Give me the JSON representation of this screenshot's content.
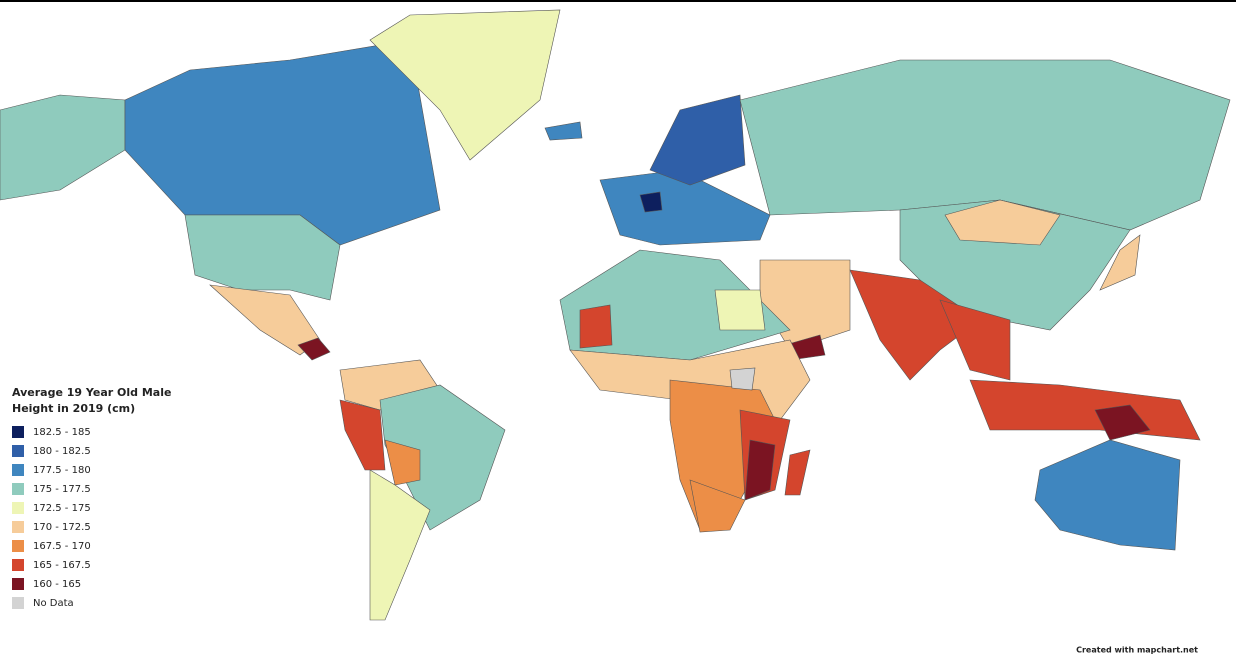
{
  "map": {
    "title": [
      "Average 19 Year Old Male",
      "Height in 2019 (cm)"
    ],
    "legend": [
      {
        "label": "182.5 - 185",
        "color": "#0d1f5e"
      },
      {
        "label": "180 - 182.5",
        "color": "#2f5fa8"
      },
      {
        "label": "177.5 - 180",
        "color": "#3f86bf"
      },
      {
        "label": "175 - 177.5",
        "color": "#8fcbbd"
      },
      {
        "label": "172.5 - 175",
        "color": "#eef5b5"
      },
      {
        "label": "170 - 172.5",
        "color": "#f6cc9a"
      },
      {
        "label": "167.5 - 170",
        "color": "#ec8e47"
      },
      {
        "label": "165 - 167.5",
        "color": "#d4452d"
      },
      {
        "label": "160 - 165",
        "color": "#7b1422"
      },
      {
        "label": "No Data",
        "color": "#d3d3d3"
      }
    ],
    "credit": "Created with mapchart.net"
  }
}
